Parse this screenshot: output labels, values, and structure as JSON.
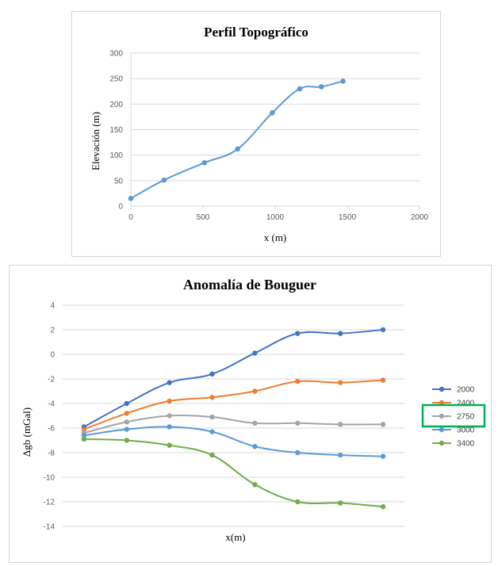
{
  "chart_data": [
    {
      "type": "line",
      "title": "Perfil Topográfico",
      "xlabel": "x (m)",
      "ylabel": "Elevación (m)",
      "xlim": [
        0,
        2000
      ],
      "ylim": [
        0,
        300
      ],
      "xticks": [
        "0",
        "500",
        "1000",
        "1500",
        "2000"
      ],
      "yticks": [
        "0",
        "50",
        "100",
        "150",
        "200",
        "250",
        "300"
      ],
      "grid": true,
      "series": [
        {
          "color": "#5b9bd5",
          "x": [
            0,
            230,
            510,
            740,
            980,
            1170,
            1320,
            1470
          ],
          "y": [
            15,
            51,
            85,
            112,
            183,
            230,
            234,
            245
          ]
        }
      ]
    },
    {
      "type": "line",
      "title": "Anomalía de Bouguer",
      "xlabel": "x(m)",
      "ylabel": "Δgb (mGal)",
      "ylim": [
        -14,
        4
      ],
      "yticks": [
        "4",
        "2",
        "0",
        "-2",
        "-4",
        "-6",
        "-8",
        "-10",
        "-12",
        "-14"
      ],
      "grid": true,
      "legend_position": "right",
      "x": [
        0,
        1,
        2,
        3,
        4,
        5,
        6,
        7
      ],
      "x_axis_labels_shown": false,
      "series": [
        {
          "name": "2000",
          "color": "#4472c4",
          "values": [
            -5.9,
            -4.0,
            -2.3,
            -1.6,
            0.1,
            1.7,
            1.7,
            2.0
          ]
        },
        {
          "name": "2400",
          "color": "#ed7d31",
          "values": [
            -6.1,
            -4.8,
            -3.8,
            -3.5,
            -3.0,
            -2.2,
            -2.3,
            -2.1
          ]
        },
        {
          "name": "2750",
          "color": "#a5a5a5",
          "values": [
            -6.4,
            -5.5,
            -5.0,
            -5.1,
            -5.6,
            -5.6,
            -5.7,
            -5.7
          ]
        },
        {
          "name": "3000",
          "color": "#5b9bd5",
          "values": [
            -6.6,
            -6.1,
            -5.9,
            -6.3,
            -7.5,
            -8.0,
            -8.2,
            -8.3
          ]
        },
        {
          "name": "3400",
          "color": "#70ad47",
          "values": [
            -6.9,
            -7.0,
            -7.4,
            -8.2,
            -10.6,
            -12.0,
            -12.1,
            -12.4
          ]
        }
      ],
      "highlighted_legend_entry": "2750",
      "highlight_color": "#00b050"
    }
  ]
}
